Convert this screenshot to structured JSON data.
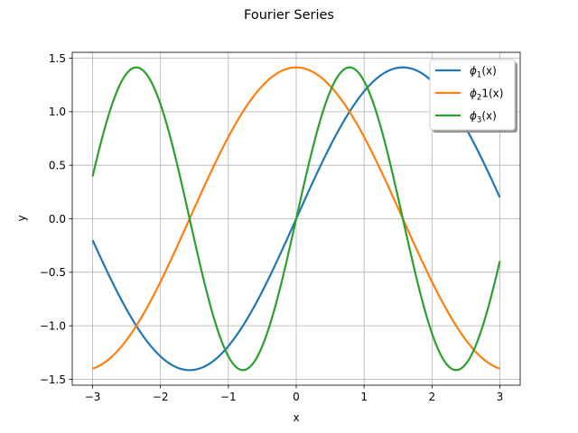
{
  "chart_data": {
    "type": "line",
    "title": "Fourier Series",
    "xlabel": "x",
    "ylabel": "y",
    "xlim": [
      -3.3,
      3.3
    ],
    "ylim": [
      -1.555,
      1.555
    ],
    "grid": true,
    "legend_position": "top-right",
    "x_ticks": [
      -3,
      -2,
      -1,
      0,
      1,
      2,
      3
    ],
    "x_tick_labels": [
      "−3",
      "−2",
      "−1",
      "0",
      "1",
      "2",
      "3"
    ],
    "y_ticks": [
      -1.5,
      -1.0,
      -0.5,
      0.0,
      0.5,
      1.0,
      1.5
    ],
    "y_tick_labels": [
      "−1.5",
      "−1.0",
      "−0.5",
      "0.0",
      "0.5",
      "1.0",
      "1.5"
    ],
    "x_range": [
      -3,
      3
    ],
    "series": [
      {
        "name": "ϕ1(x)",
        "legend_label": {
          "base": "ϕ",
          "sub": "1",
          "suffix": "(x)"
        },
        "formula": "sqrt(2)*sin(x)",
        "color": "#1f77b4",
        "x": [
          -3,
          -2.5,
          -2,
          -1.5708,
          -1,
          -0.5,
          0,
          0.5,
          1,
          1.5708,
          2,
          2.5,
          3
        ],
        "y": [
          -0.2,
          -0.85,
          -1.29,
          -1.414,
          -1.19,
          -0.68,
          0.0,
          0.68,
          1.19,
          1.414,
          1.29,
          0.85,
          0.2
        ]
      },
      {
        "name": "ϕ21(x)",
        "legend_label": {
          "base": "ϕ",
          "sub": "2",
          "suffix": "1(x)"
        },
        "formula": "sqrt(2)*cos(x)",
        "color": "#ff7f0e",
        "x": [
          -3,
          -2.5,
          -2,
          -1.5708,
          -1,
          -0.5,
          0,
          0.5,
          1,
          1.5708,
          2,
          2.5,
          3
        ],
        "y": [
          -1.4,
          -1.13,
          -0.59,
          0.0,
          0.76,
          1.24,
          1.414,
          1.24,
          0.76,
          0.0,
          -0.59,
          -1.13,
          -1.4
        ]
      },
      {
        "name": "ϕ3(x)",
        "legend_label": {
          "base": "ϕ",
          "sub": "3",
          "suffix": "(x)"
        },
        "formula": "sqrt(2)*sin(2x)",
        "color": "#2ca02c",
        "x": [
          -3,
          -2.356,
          -2,
          -1.5708,
          -1,
          -0.785,
          0,
          0.785,
          1,
          1.5708,
          2,
          2.356,
          3
        ],
        "y": [
          0.4,
          1.414,
          1.07,
          0.0,
          -1.29,
          -1.414,
          0.0,
          1.414,
          1.29,
          0.0,
          -1.07,
          -1.414,
          -0.4
        ]
      }
    ]
  }
}
